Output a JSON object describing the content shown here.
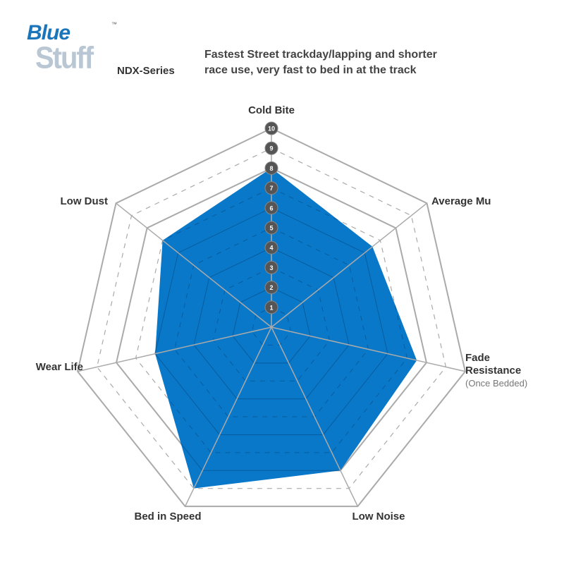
{
  "logo": {
    "brand_top": "Blue",
    "brand_bottom": "Stuff",
    "trademark": "™"
  },
  "header": {
    "series": "NDX-Series",
    "description_line1": "Fastest Street trackday/lapping and shorter",
    "description_line2": "race use, very fast to bed in at the track"
  },
  "chart_data": {
    "type": "radar",
    "title": "",
    "axes": [
      "Cold Bite",
      "Average Mu",
      "Fade Resistance",
      "Low Noise",
      "Bed in Speed",
      "Wear Life",
      "Low Dust"
    ],
    "axis_sublabels": {
      "Fade Resistance": "(Once Bedded)"
    },
    "values": [
      8,
      6.5,
      7.5,
      8,
      9,
      6,
      7
    ],
    "rlim": [
      0,
      10
    ],
    "tick_labels": [
      "1",
      "2",
      "3",
      "4",
      "5",
      "6",
      "7",
      "8",
      "9",
      "10"
    ],
    "grid": true,
    "fill_color": "#0a78c8",
    "grid_color": "#aaaaaa"
  }
}
